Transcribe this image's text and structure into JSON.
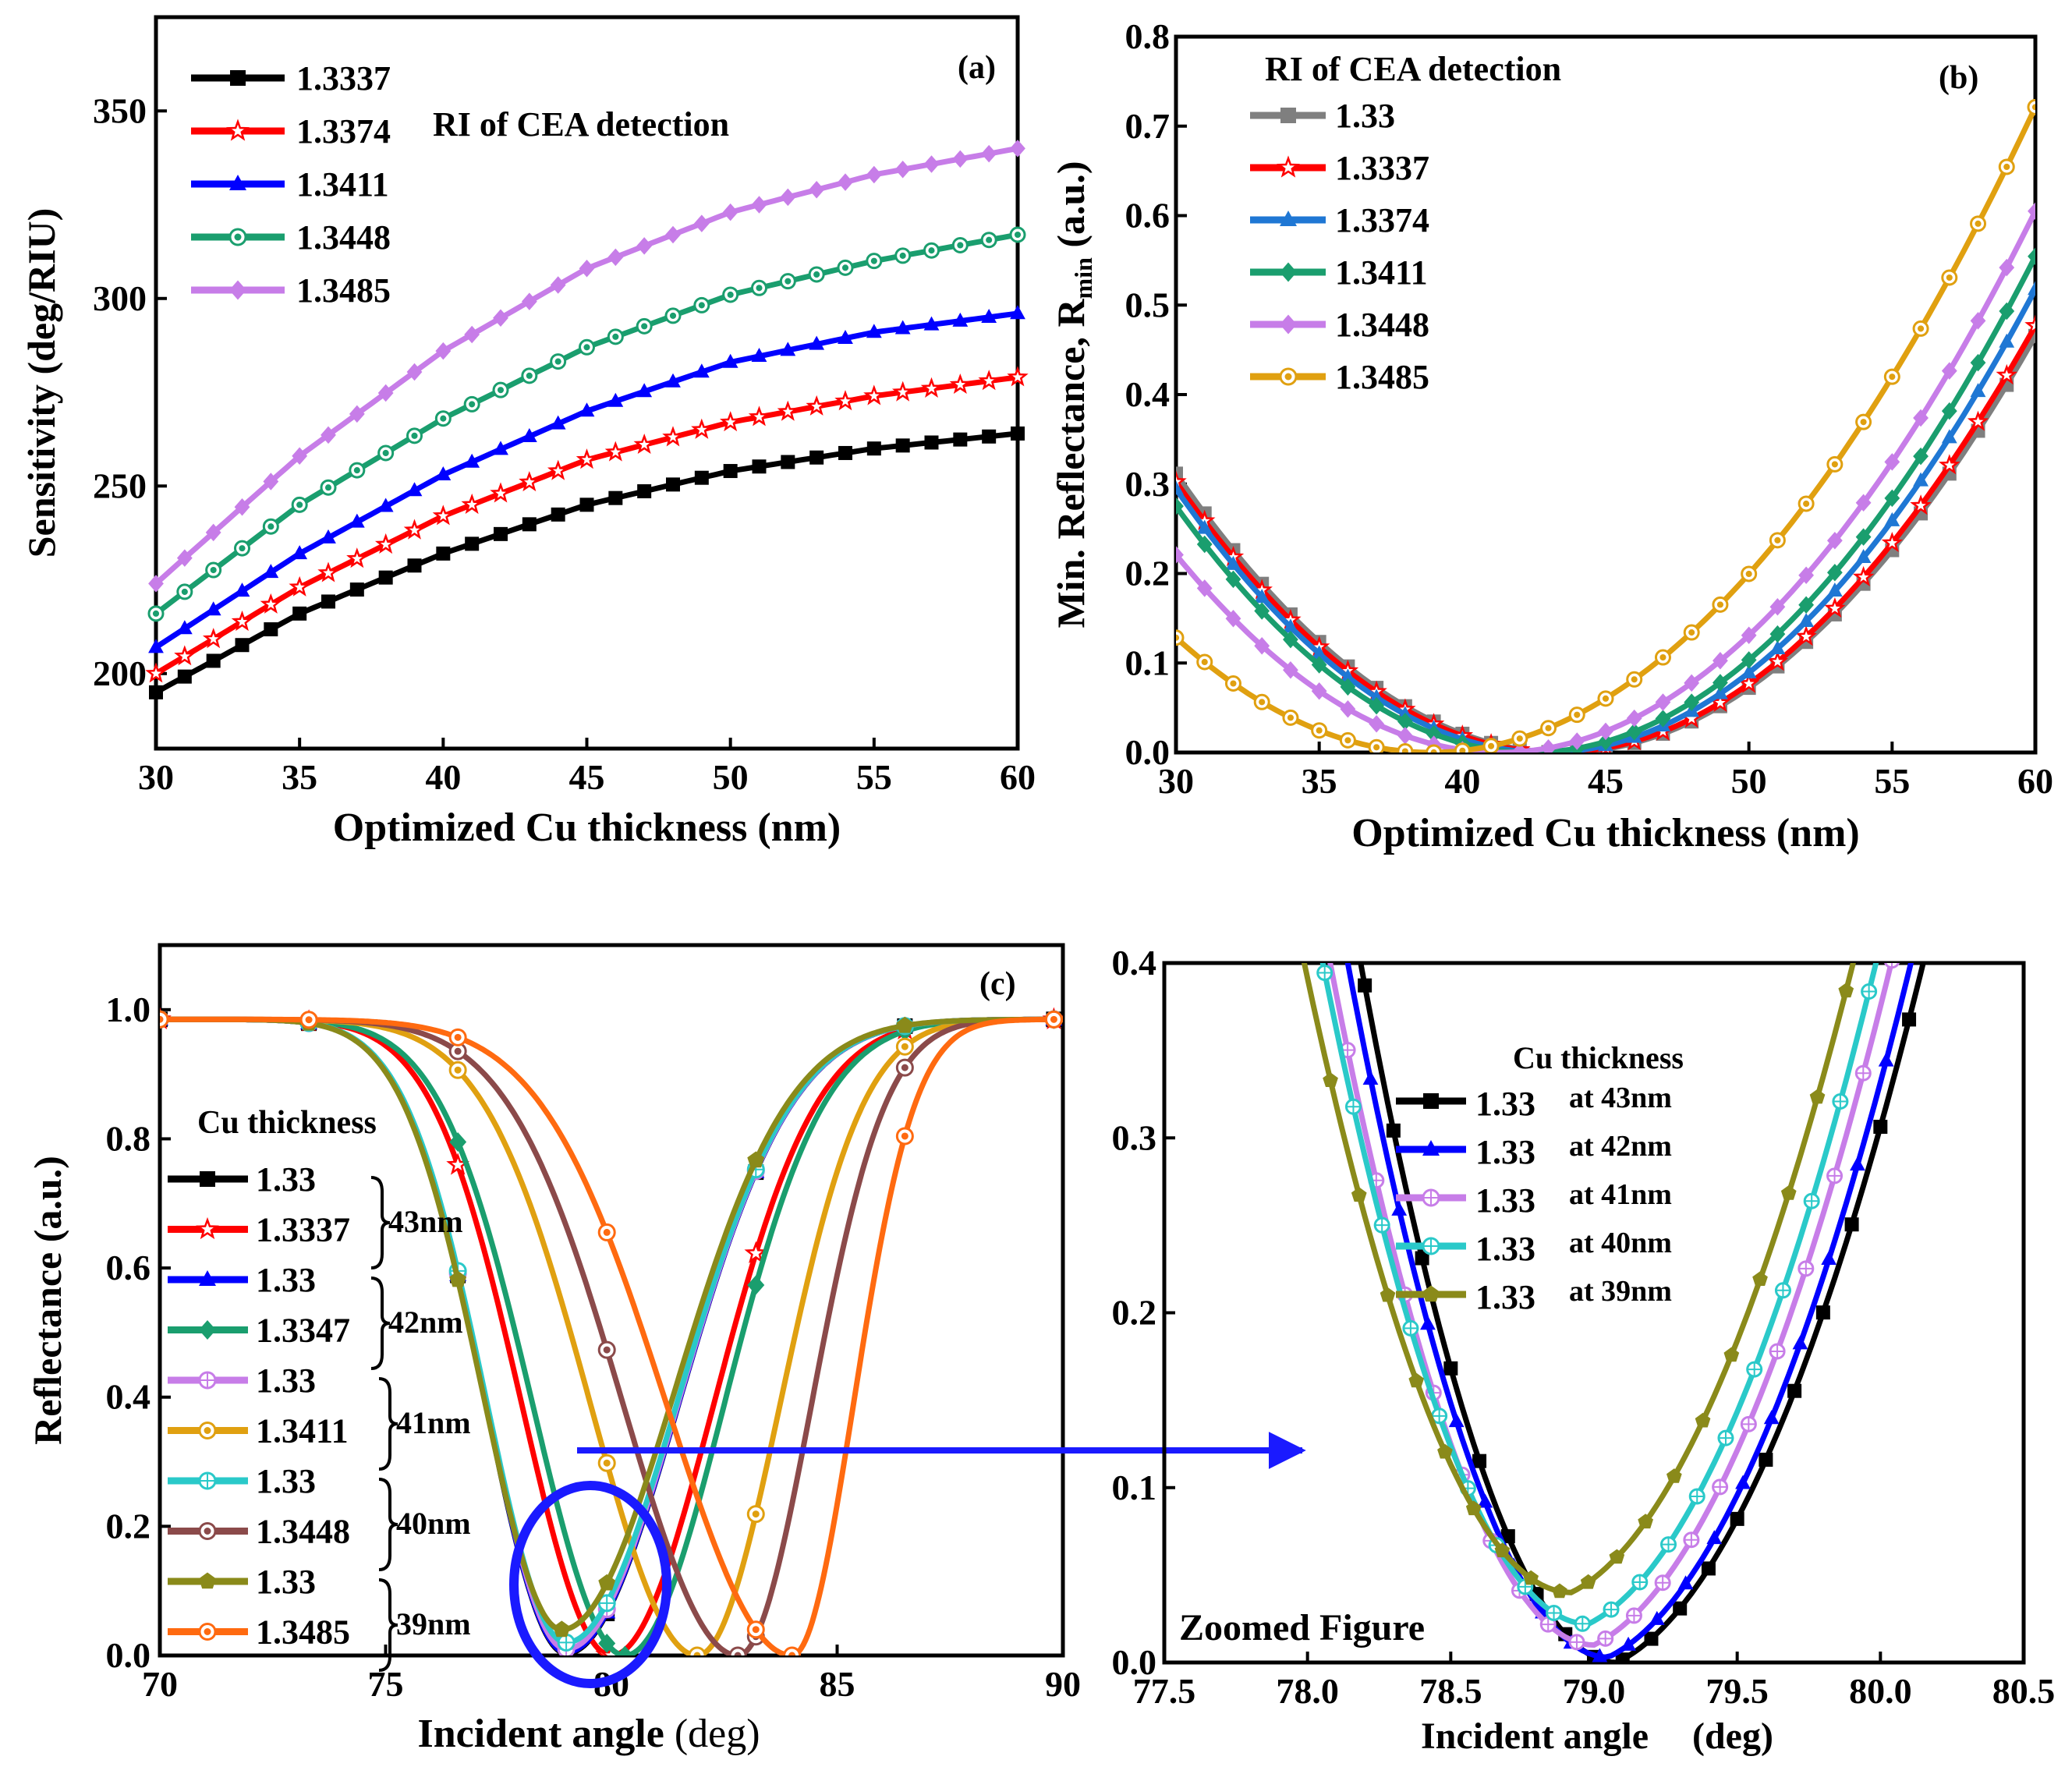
{
  "figure_texts": {
    "a_panel_label": "(a)",
    "a_annotation": "RI of CEA detection",
    "b_panel_label": "(b)",
    "b_legend_title": "RI of CEA detection",
    "c_panel_label": "(c)",
    "c_legend_title": "Cu thickness",
    "d_legend_title": "Cu thickness",
    "d_annotation": "Zoomed Figure",
    "d_xlabel_left": "Incident angle",
    "d_xlabel_right": "(deg)"
  },
  "chart_data": [
    {
      "id": "a",
      "type": "line",
      "title": "",
      "xlabel": "Optimized Cu thickness (nm)",
      "ylabel": "Sensitivity (deg/RIU)",
      "xlim": [
        30,
        60
      ],
      "ylim": [
        180,
        375
      ],
      "xticks": [
        "30",
        "35",
        "40",
        "45",
        "50",
        "55",
        "60"
      ],
      "yticks": [
        "200",
        "250",
        "300",
        "350"
      ],
      "legend_position": "top-left",
      "series": [
        {
          "name": "1.3337",
          "color": "#000000",
          "marker": "square",
          "x": [
            30,
            35,
            40,
            45,
            50,
            55,
            60
          ],
          "values": [
            195,
            216,
            232,
            245,
            254,
            260,
            264
          ]
        },
        {
          "name": "1.3374",
          "color": "#ff0000",
          "marker": "star",
          "x": [
            30,
            35,
            40,
            45,
            50,
            55,
            60
          ],
          "values": [
            200,
            223,
            242,
            257,
            267,
            274,
            279
          ]
        },
        {
          "name": "1.3411",
          "color": "#0000ff",
          "marker": "triangle",
          "x": [
            30,
            35,
            40,
            45,
            50,
            55,
            60
          ],
          "values": [
            207,
            232,
            253,
            270,
            283,
            291,
            296
          ]
        },
        {
          "name": "1.3448",
          "color": "#1a9e6e",
          "marker": "circle",
          "x": [
            30,
            35,
            40,
            45,
            50,
            55,
            60
          ],
          "values": [
            216,
            245,
            268,
            287,
            301,
            310,
            317
          ]
        },
        {
          "name": "1.3485",
          "color": "#c77de8",
          "marker": "diamond",
          "x": [
            30,
            35,
            40,
            45,
            50,
            55,
            60
          ],
          "values": [
            224,
            258,
            286,
            308,
            323,
            333,
            340
          ]
        }
      ]
    },
    {
      "id": "b",
      "type": "line",
      "title": "",
      "xlabel": "Optimized Cu thickness (nm)",
      "ylabel": "Min. Reflectance, R",
      "ylabel_subscript": "min",
      "ylabel_suffix": " (a.u.)",
      "xlim": [
        30,
        60
      ],
      "ylim": [
        0,
        0.8
      ],
      "xticks": [
        "30",
        "35",
        "40",
        "45",
        "50",
        "55",
        "60"
      ],
      "yticks": [
        "0.0",
        "0.1",
        "0.2",
        "0.3",
        "0.4",
        "0.5",
        "0.6",
        "0.7",
        "0.8"
      ],
      "legend_position": "top-left",
      "series": [
        {
          "name": "1.33",
          "color": "#7f7f7f",
          "marker": "square",
          "center": 43.5,
          "scale": 0.00171
        },
        {
          "name": "1.3337",
          "color": "#ff0000",
          "marker": "star",
          "center": 43.3,
          "scale": 0.00171
        },
        {
          "name": "1.3374",
          "color": "#1f77d4",
          "marker": "triangle",
          "center": 42.9,
          "scale": 0.00177
        },
        {
          "name": "1.3411",
          "color": "#1a9e6e",
          "marker": "diamond",
          "center": 42.4,
          "scale": 0.00179
        },
        {
          "name": "1.3448",
          "color": "#c77de8",
          "marker": "diamond",
          "center": 41.3,
          "scale": 0.00173
        },
        {
          "name": "1.3485",
          "color": "#e0a010",
          "marker": "circle",
          "center": 38.9,
          "scale": 0.00162
        }
      ]
    },
    {
      "id": "c",
      "type": "line",
      "title": "",
      "xlabel": "Incident angle",
      "xlabel_unit": "(deg)",
      "ylabel": "Reflectance (a.u.)",
      "xlim": [
        70,
        90
      ],
      "ylim": [
        0,
        1.1
      ],
      "xticks": [
        "70",
        "75",
        "80",
        "85",
        "90"
      ],
      "yticks": [
        "0.0",
        "0.2",
        "0.4",
        "0.6",
        "0.8",
        "1.0"
      ],
      "legend_position": "center-left",
      "groups": [
        "43nm",
        "42nm",
        "41nm",
        "40nm",
        "39nm"
      ],
      "series": [
        {
          "name": "1.33",
          "group": "43nm",
          "color": "#000000",
          "marker": "square",
          "x0": 79.0,
          "w": 1.5,
          "ymin": 0.003
        },
        {
          "name": "1.3337",
          "group": "43nm",
          "color": "#ff0000",
          "marker": "star",
          "x0": 80.0,
          "w": 1.6,
          "ymin": 0.0
        },
        {
          "name": "1.33",
          "group": "42nm",
          "color": "#0000ff",
          "marker": "triangle",
          "x0": 79.0,
          "w": 1.5,
          "ymin": 0.005
        },
        {
          "name": "1.3347",
          "group": "42nm",
          "color": "#1a9e6e",
          "marker": "diamond",
          "x0": 80.3,
          "w": 1.65,
          "ymin": 0.0
        },
        {
          "name": "1.33",
          "group": "41nm",
          "color": "#c77de8",
          "marker": "circle-plus",
          "x0": 79.0,
          "w": 1.5,
          "ymin": 0.01
        },
        {
          "name": "1.3411",
          "group": "41nm",
          "color": "#e0a010",
          "marker": "circle",
          "x0": 81.9,
          "w": 2.0,
          "ymin": 0.0
        },
        {
          "name": "1.33",
          "group": "40nm",
          "color": "#2ac9c9",
          "marker": "circle-plus",
          "x0": 79.0,
          "w": 1.5,
          "ymin": 0.02
        },
        {
          "name": "1.3448",
          "group": "40nm",
          "color": "#8b4a4a",
          "marker": "circle",
          "x0": 82.8,
          "w": 2.3,
          "ymin": 0.0
        },
        {
          "name": "1.33",
          "group": "39nm",
          "color": "#8a8a1a",
          "marker": "pentagon",
          "x0": 78.9,
          "w": 1.5,
          "ymin": 0.04
        },
        {
          "name": "1.3485",
          "group": "39nm",
          "color": "#ff6a10",
          "marker": "circle",
          "x0": 84.0,
          "w": 2.6,
          "ymin": 0.0
        }
      ]
    },
    {
      "id": "d",
      "type": "line",
      "title": "",
      "xlabel": "Incident angle (deg)",
      "ylabel": "",
      "xlim": [
        77.5,
        80.5
      ],
      "ylim": [
        0,
        0.4
      ],
      "xticks": [
        "77.5",
        "78.0",
        "78.5",
        "79.0",
        "79.5",
        "80.0",
        "80.5"
      ],
      "yticks": [
        "0.0",
        "0.1",
        "0.2",
        "0.3",
        "0.4"
      ],
      "legend_position": "upper-right",
      "series": [
        {
          "name": "1.33",
          "label_suffix": "at 43nm",
          "color": "#000000",
          "marker": "square",
          "x0": 79.08,
          "ymin": 0.0,
          "kL": 0.5,
          "kR": 0.275
        },
        {
          "name": "1.33",
          "label_suffix": "at 42nm",
          "color": "#0000ff",
          "marker": "triangle",
          "x0": 79.05,
          "ymin": 0.003,
          "kL": 0.48,
          "kR": 0.28
        },
        {
          "name": "1.33",
          "label_suffix": "at 41nm",
          "color": "#c77de8",
          "marker": "circle-plus",
          "x0": 79.0,
          "ymin": 0.01,
          "kL": 0.46,
          "kR": 0.285
        },
        {
          "name": "1.33",
          "label_suffix": "at 40nm",
          "color": "#2ac9c9",
          "marker": "circle-plus",
          "x0": 78.98,
          "ymin": 0.022,
          "kL": 0.44,
          "kR": 0.295
        },
        {
          "name": "1.33",
          "label_suffix": "at 39nm",
          "color": "#8a8a1a",
          "marker": "pentagon",
          "x0": 78.92,
          "ymin": 0.04,
          "kL": 0.415,
          "kR": 0.29
        }
      ]
    }
  ]
}
